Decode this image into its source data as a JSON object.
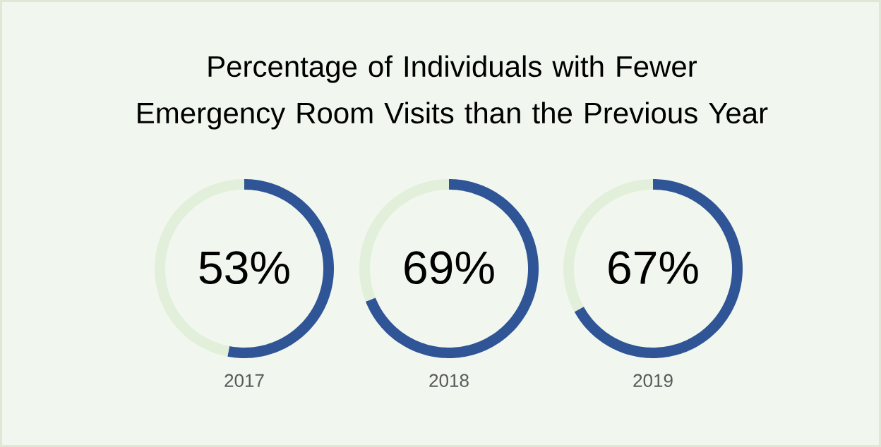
{
  "chart_data": [
    {
      "type": "other",
      "title": "Percentage of Individuals with Fewer Emergency Room Visits than the Previous Year"
    },
    {
      "type": "donut",
      "categories": [
        null,
        null
      ],
      "values": [
        53,
        47
      ],
      "colors": [
        "#2f5597",
        "#e2efda"
      ],
      "annotations": [
        "53%",
        "2017"
      ]
    },
    {
      "type": "donut",
      "categories": [
        null,
        null
      ],
      "values": [
        69,
        31
      ],
      "colors": [
        "#2f5597",
        "#e2efda"
      ],
      "annotations": [
        "69%",
        "2018"
      ]
    },
    {
      "type": "donut",
      "categories": [
        null,
        null
      ],
      "values": [
        67,
        33
      ],
      "colors": [
        "#2f5597",
        "#e2efda"
      ],
      "annotations": [
        "67%",
        "2019"
      ]
    }
  ]
}
